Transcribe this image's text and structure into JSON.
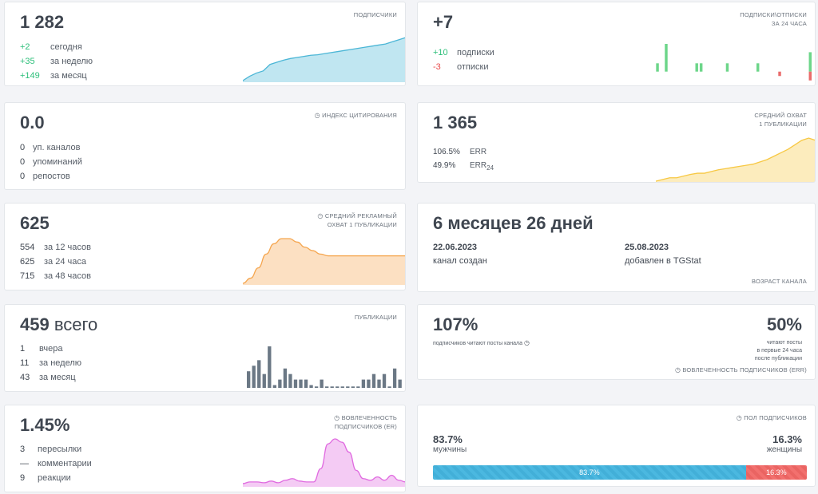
{
  "subscribers": {
    "value": "1 282",
    "label": "ПОДПИСЧИКИ",
    "rows": [
      {
        "v": "+2",
        "t": "сегодня"
      },
      {
        "v": "+35",
        "t": "за неделю"
      },
      {
        "v": "+149",
        "t": "за месяц"
      }
    ],
    "color": "#4bb6d6"
  },
  "subs_unsubs": {
    "value": "+7",
    "label_line1": "ПОДПИСКИ\\ОТПИСКИ",
    "label_line2": "ЗА 24 ЧАСА",
    "rows": [
      {
        "v": "+10",
        "t": "подписки"
      },
      {
        "v": "-3",
        "t": "отписки"
      }
    ],
    "color_plus": "#6dd68a",
    "color_minus": "#ea6b6b"
  },
  "citation": {
    "value": "0.0",
    "label": "ИНДЕКС ЦИТИРОВАНИЯ",
    "icon": "clock-icon",
    "rows": [
      {
        "v": "0",
        "t": "уп. каналов"
      },
      {
        "v": "0",
        "t": "упоминаний"
      },
      {
        "v": "0",
        "t": "репостов"
      }
    ]
  },
  "reach": {
    "value": "1 365",
    "label_line1": "СРЕДНИЙ ОХВАТ",
    "label_line2": "1 ПУБЛИКАЦИИ",
    "rows": [
      {
        "v": "106.5%",
        "t": "ERR"
      },
      {
        "v": "49.9%",
        "t": "ERR",
        "sub": "24"
      }
    ],
    "color": "#f7c843"
  },
  "ad_reach": {
    "value": "625",
    "label_line1": "СРЕДНИЙ РЕКЛАМНЫЙ",
    "label_line2": "ОХВАТ 1 ПУБЛИКАЦИИ",
    "icon": "clock-icon",
    "rows": [
      {
        "v": "554",
        "t": "за 12 часов"
      },
      {
        "v": "625",
        "t": "за 24 часа"
      },
      {
        "v": "715",
        "t": "за 48 часов"
      }
    ],
    "color": "#f5a64f"
  },
  "age": {
    "value": "6 месяцев 26 дней",
    "created_date": "22.06.2023",
    "created_label": "канал создан",
    "added_date": "25.08.2023",
    "added_label": "добавлен в TGStat",
    "label": "ВОЗРАСТ КАНАЛА"
  },
  "posts": {
    "value": "459",
    "unit": "всего",
    "label": "ПУБЛИКАЦИИ",
    "rows": [
      {
        "v": "1",
        "t": "вчера"
      },
      {
        "v": "11",
        "t": "за неделю"
      },
      {
        "v": "43",
        "t": "за месяц"
      }
    ],
    "color": "#6b7885"
  },
  "engagement": {
    "left_value": "107%",
    "left_caption": "подписчиков читают посты канала",
    "right_value": "50%",
    "right_caption_1": "читают посты",
    "right_caption_2": "в первые 24 часа",
    "right_caption_3": "после публикации",
    "label": "ВОВЛЕЧЕННОСТЬ ПОДПИСЧИКОВ (ERR)",
    "icon": "clock-icon"
  },
  "er": {
    "value": "1.45%",
    "label_line1": "ВОВЛЕЧЕННОСТЬ",
    "label_line2": "ПОДПИСЧИКОВ (ER)",
    "icon": "clock-icon",
    "rows": [
      {
        "v": "3",
        "t": "пересылки"
      },
      {
        "v": "—",
        "t": "комментарии"
      },
      {
        "v": "9",
        "t": "реакции"
      }
    ],
    "color": "#e06be0"
  },
  "gender": {
    "label": "ПОЛ ПОДПИСЧИКОВ",
    "icon": "clock-icon",
    "male_pct": "83.7%",
    "male_label": "мужчины",
    "female_pct": "16.3%",
    "female_label": "женщины",
    "male_fraction": 0.837,
    "female_fraction": 0.163
  },
  "sparks": {
    "subscribers": [
      0,
      8,
      14,
      18,
      30,
      34,
      38,
      41,
      43,
      45,
      47,
      48,
      50,
      52,
      54,
      56,
      58,
      60,
      62,
      64,
      66,
      68,
      72,
      76,
      80
    ],
    "subs_plus": [
      0,
      0,
      0,
      0,
      0,
      3,
      0,
      10,
      0,
      0,
      0,
      0,
      0,
      0,
      3,
      3,
      0,
      0,
      0,
      0,
      0,
      3,
      0,
      0,
      0,
      0,
      0,
      0,
      3,
      0,
      0,
      0,
      0,
      0,
      0,
      0,
      0,
      0,
      0,
      0,
      7
    ],
    "subs_minus": [
      0,
      0,
      0,
      0,
      0,
      0,
      0,
      0,
      0,
      0,
      0,
      0,
      0,
      0,
      0,
      0,
      0,
      0,
      0,
      0,
      0,
      0,
      0,
      0,
      0,
      0,
      0,
      0,
      0,
      0,
      0,
      0,
      0,
      1,
      0,
      0,
      0,
      0,
      0,
      0,
      2
    ],
    "reach": [
      0,
      3,
      6,
      6,
      9,
      12,
      14,
      14,
      17,
      20,
      22,
      24,
      26,
      28,
      30,
      34,
      38,
      44,
      50,
      56,
      64,
      72,
      76,
      72
    ],
    "ad_reach": [
      0,
      6,
      18,
      34,
      46,
      52,
      52,
      48,
      42,
      38,
      34,
      32,
      32,
      32,
      32,
      32,
      32,
      32,
      32,
      32,
      32,
      32
    ],
    "posts": [
      12,
      16,
      20,
      10,
      30,
      2,
      6,
      14,
      10,
      6,
      6,
      6,
      2,
      1,
      6,
      1,
      1,
      1,
      1,
      1,
      1,
      1,
      6,
      6,
      10,
      6,
      10,
      1,
      14,
      6
    ],
    "er": [
      2,
      4,
      4,
      3,
      5,
      3,
      6,
      8,
      5,
      4,
      4,
      20,
      50,
      56,
      52,
      40,
      18,
      8,
      6,
      10,
      6,
      12,
      6,
      4
    ]
  }
}
